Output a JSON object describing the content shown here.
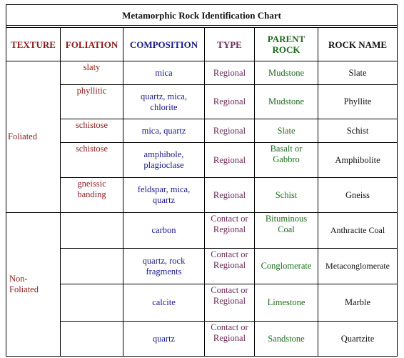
{
  "title": "Metamorphic Rock Identification Chart",
  "headers": {
    "texture": "TEXTURE",
    "foliation": "FOLIATION",
    "composition": "COMPOSITION",
    "type": "TYPE",
    "parent_line1": "PARENT",
    "parent_line2": "ROCK",
    "rock_name": "ROCK NAME"
  },
  "textures": {
    "foliated": "Foliated",
    "nonfoliated_line1": "Non-",
    "nonfoliated_line2": "Foliated"
  },
  "rows": [
    {
      "foliation": [
        "slaty"
      ],
      "composition": [
        "mica"
      ],
      "type": [
        "Regional"
      ],
      "parent": [
        "Mudstone"
      ],
      "name": "Slate"
    },
    {
      "foliation": [
        "phyllitic"
      ],
      "composition": [
        "quartz, mica,",
        "chlorite"
      ],
      "type": [
        "Regional"
      ],
      "parent": [
        "Mudstone"
      ],
      "name": "Phyllite"
    },
    {
      "foliation": [
        "schistose"
      ],
      "composition": [
        "mica, quartz"
      ],
      "type": [
        "Regional"
      ],
      "parent": [
        "Slate"
      ],
      "name": "Schist"
    },
    {
      "foliation": [
        "schistose"
      ],
      "composition": [
        "amphibole,",
        "plagioclase"
      ],
      "type": [
        "Regional"
      ],
      "parent": [
        "Basalt or",
        "Gabbro"
      ],
      "name": "Amphibolite"
    },
    {
      "foliation": [
        "gneissic",
        "banding"
      ],
      "composition": [
        "feldspar, mica,",
        "quartz"
      ],
      "type": [
        "Regional"
      ],
      "parent": [
        "Schist"
      ],
      "name": "Gneiss"
    },
    {
      "foliation": [],
      "composition": [
        "carbon"
      ],
      "type": [
        "Contact or",
        "Regional"
      ],
      "parent": [
        "Bituminous",
        "Coal"
      ],
      "name": "Anthracite Coal"
    },
    {
      "foliation": [],
      "composition": [
        "quartz, rock",
        "fragments"
      ],
      "type": [
        "Contact or",
        "Regional"
      ],
      "parent": [
        "Conglomerate"
      ],
      "name": "Metaconglomerate"
    },
    {
      "foliation": [],
      "composition": [
        "calcite"
      ],
      "type": [
        "Contact or",
        "Regional"
      ],
      "parent": [
        "Limestone"
      ],
      "name": "Marble"
    },
    {
      "foliation": [],
      "composition": [
        "quartz"
      ],
      "type": [
        "Contact or",
        "Regional"
      ],
      "parent": [
        "Sandstone"
      ],
      "name": "Quartzite"
    }
  ]
}
